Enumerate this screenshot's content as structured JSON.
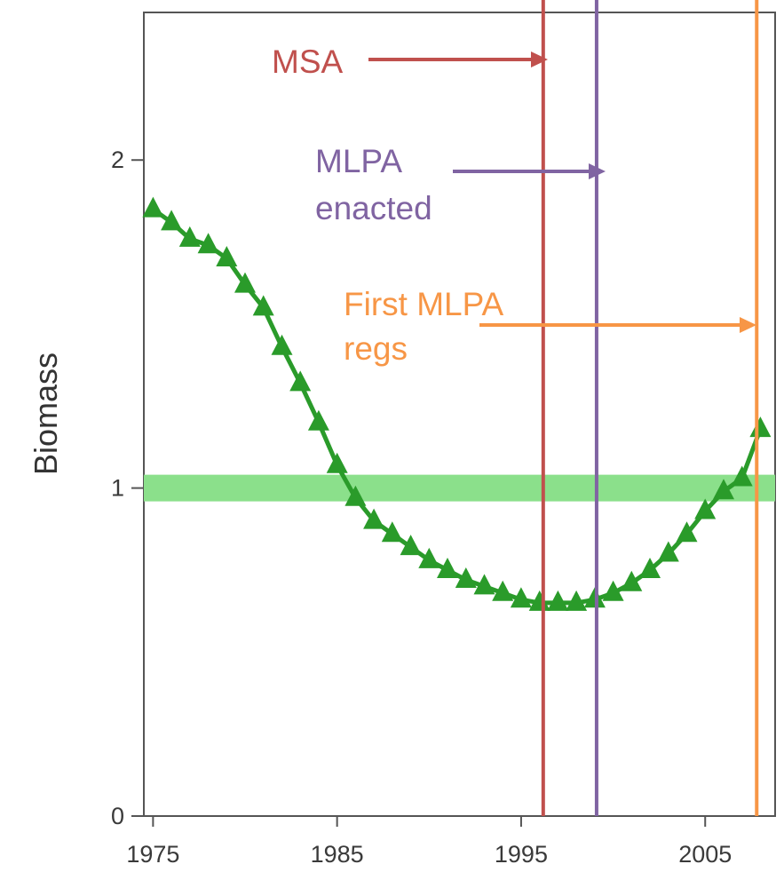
{
  "chart_data": {
    "type": "line",
    "title": "",
    "xlabel": "",
    "ylabel": "Biomass",
    "xlim": [
      1974.5,
      2008.8
    ],
    "ylim": [
      0,
      2.45
    ],
    "x_ticks": [
      1975,
      1985,
      1995,
      2005
    ],
    "x_tick_labels": [
      "1975",
      "1985",
      "1995",
      "2005"
    ],
    "y_ticks": [
      0,
      1,
      2
    ],
    "y_tick_labels": [
      "0",
      "1",
      "2"
    ],
    "grid": false,
    "legend": "none",
    "series": [
      {
        "marker": "triangle",
        "color": "#2a9b2a",
        "x": [
          1975,
          1976,
          1977,
          1978,
          1979,
          1980,
          1981,
          1982,
          1983,
          1984,
          1985,
          1986,
          1987,
          1988,
          1989,
          1990,
          1991,
          1992,
          1993,
          1994,
          1995,
          1996,
          1997,
          1998,
          1999,
          2000,
          2001,
          2002,
          2003,
          2004,
          2005,
          2006,
          2007,
          2008
        ],
        "y": [
          1.85,
          1.81,
          1.76,
          1.74,
          1.7,
          1.62,
          1.55,
          1.43,
          1.32,
          1.2,
          1.07,
          0.97,
          0.9,
          0.86,
          0.82,
          0.78,
          0.75,
          0.72,
          0.7,
          0.68,
          0.66,
          0.65,
          0.65,
          0.65,
          0.66,
          0.68,
          0.71,
          0.75,
          0.8,
          0.86,
          0.93,
          0.99,
          1.03,
          1.18
        ]
      }
    ],
    "reference_band": {
      "y": 1.0,
      "color": "#8be08b"
    },
    "vlines": [
      {
        "x": 1996.2,
        "color": "#c0504d"
      },
      {
        "x": 1999.1,
        "color": "#8064a2"
      },
      {
        "x": 2007.8,
        "color": "#f79646"
      }
    ],
    "annotations": [
      {
        "lines": [
          "MSA"
        ],
        "color": "#c0504d"
      },
      {
        "lines": [
          "MLPA",
          "enacted"
        ],
        "color": "#8064a2"
      },
      {
        "lines": [
          "First MLPA",
          "regs"
        ],
        "color": "#f79646"
      }
    ]
  }
}
